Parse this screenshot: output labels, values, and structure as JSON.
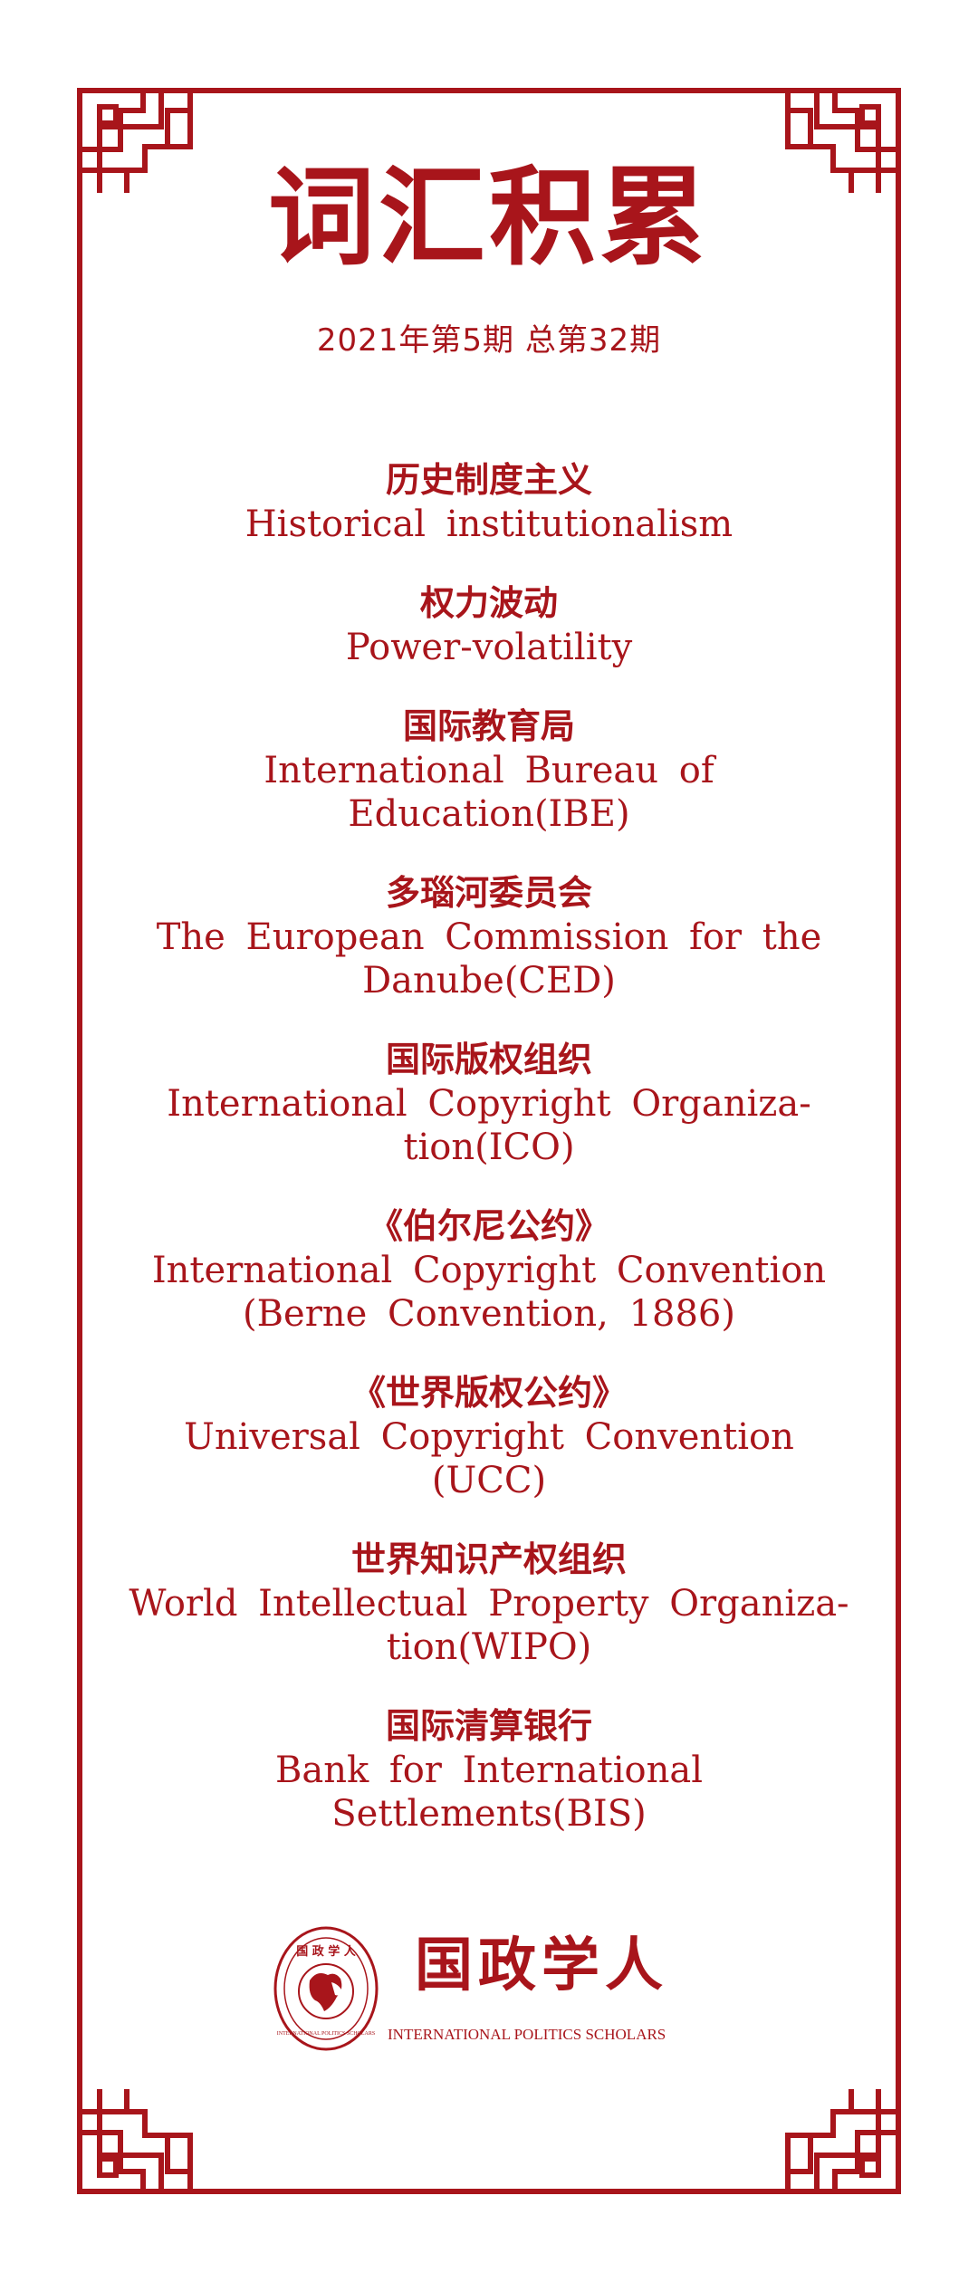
{
  "header": {
    "title": "词汇积累",
    "issue": "2021年第5期 总第32期"
  },
  "entries": [
    {
      "zh": "历史制度主义",
      "en": [
        "Historical institutionalism"
      ]
    },
    {
      "zh": "权力波动",
      "en": [
        "Power-volatility"
      ]
    },
    {
      "zh": "国际教育局",
      "en": [
        "International Bureau of Education(IBE)"
      ]
    },
    {
      "zh": "多瑙河委员会",
      "en": [
        "The European Commission for the",
        "Danube(CED)"
      ]
    },
    {
      "zh": "国际版权组织",
      "en": [
        "International Copyright Organiza-",
        "tion(ICO)"
      ]
    },
    {
      "zh": "《伯尔尼公约》",
      "en": [
        "International Copyright Convention",
        "(Berne Convention, 1886)"
      ]
    },
    {
      "zh": "《世界版权公约》",
      "en": [
        "Universal Copyright Convention",
        "(UCC)"
      ]
    },
    {
      "zh": "世界知识产权组织",
      "en": [
        "World Intellectual Property Organiza-",
        "tion(WIPO)"
      ]
    },
    {
      "zh": "国际清算银行",
      "en": [
        "Bank for International Settlements(BIS)"
      ]
    }
  ],
  "logo": {
    "name_zh": "国政学人",
    "name_en": "INTERNATIONAL POLITICS SCHOLARS",
    "seal_text": "国 政 学 人",
    "seal_ring_text": "INTERNATIONAL POLITICS SCHOLARS"
  },
  "colors": {
    "accent": "#a8151b",
    "background": "#ffffff"
  }
}
